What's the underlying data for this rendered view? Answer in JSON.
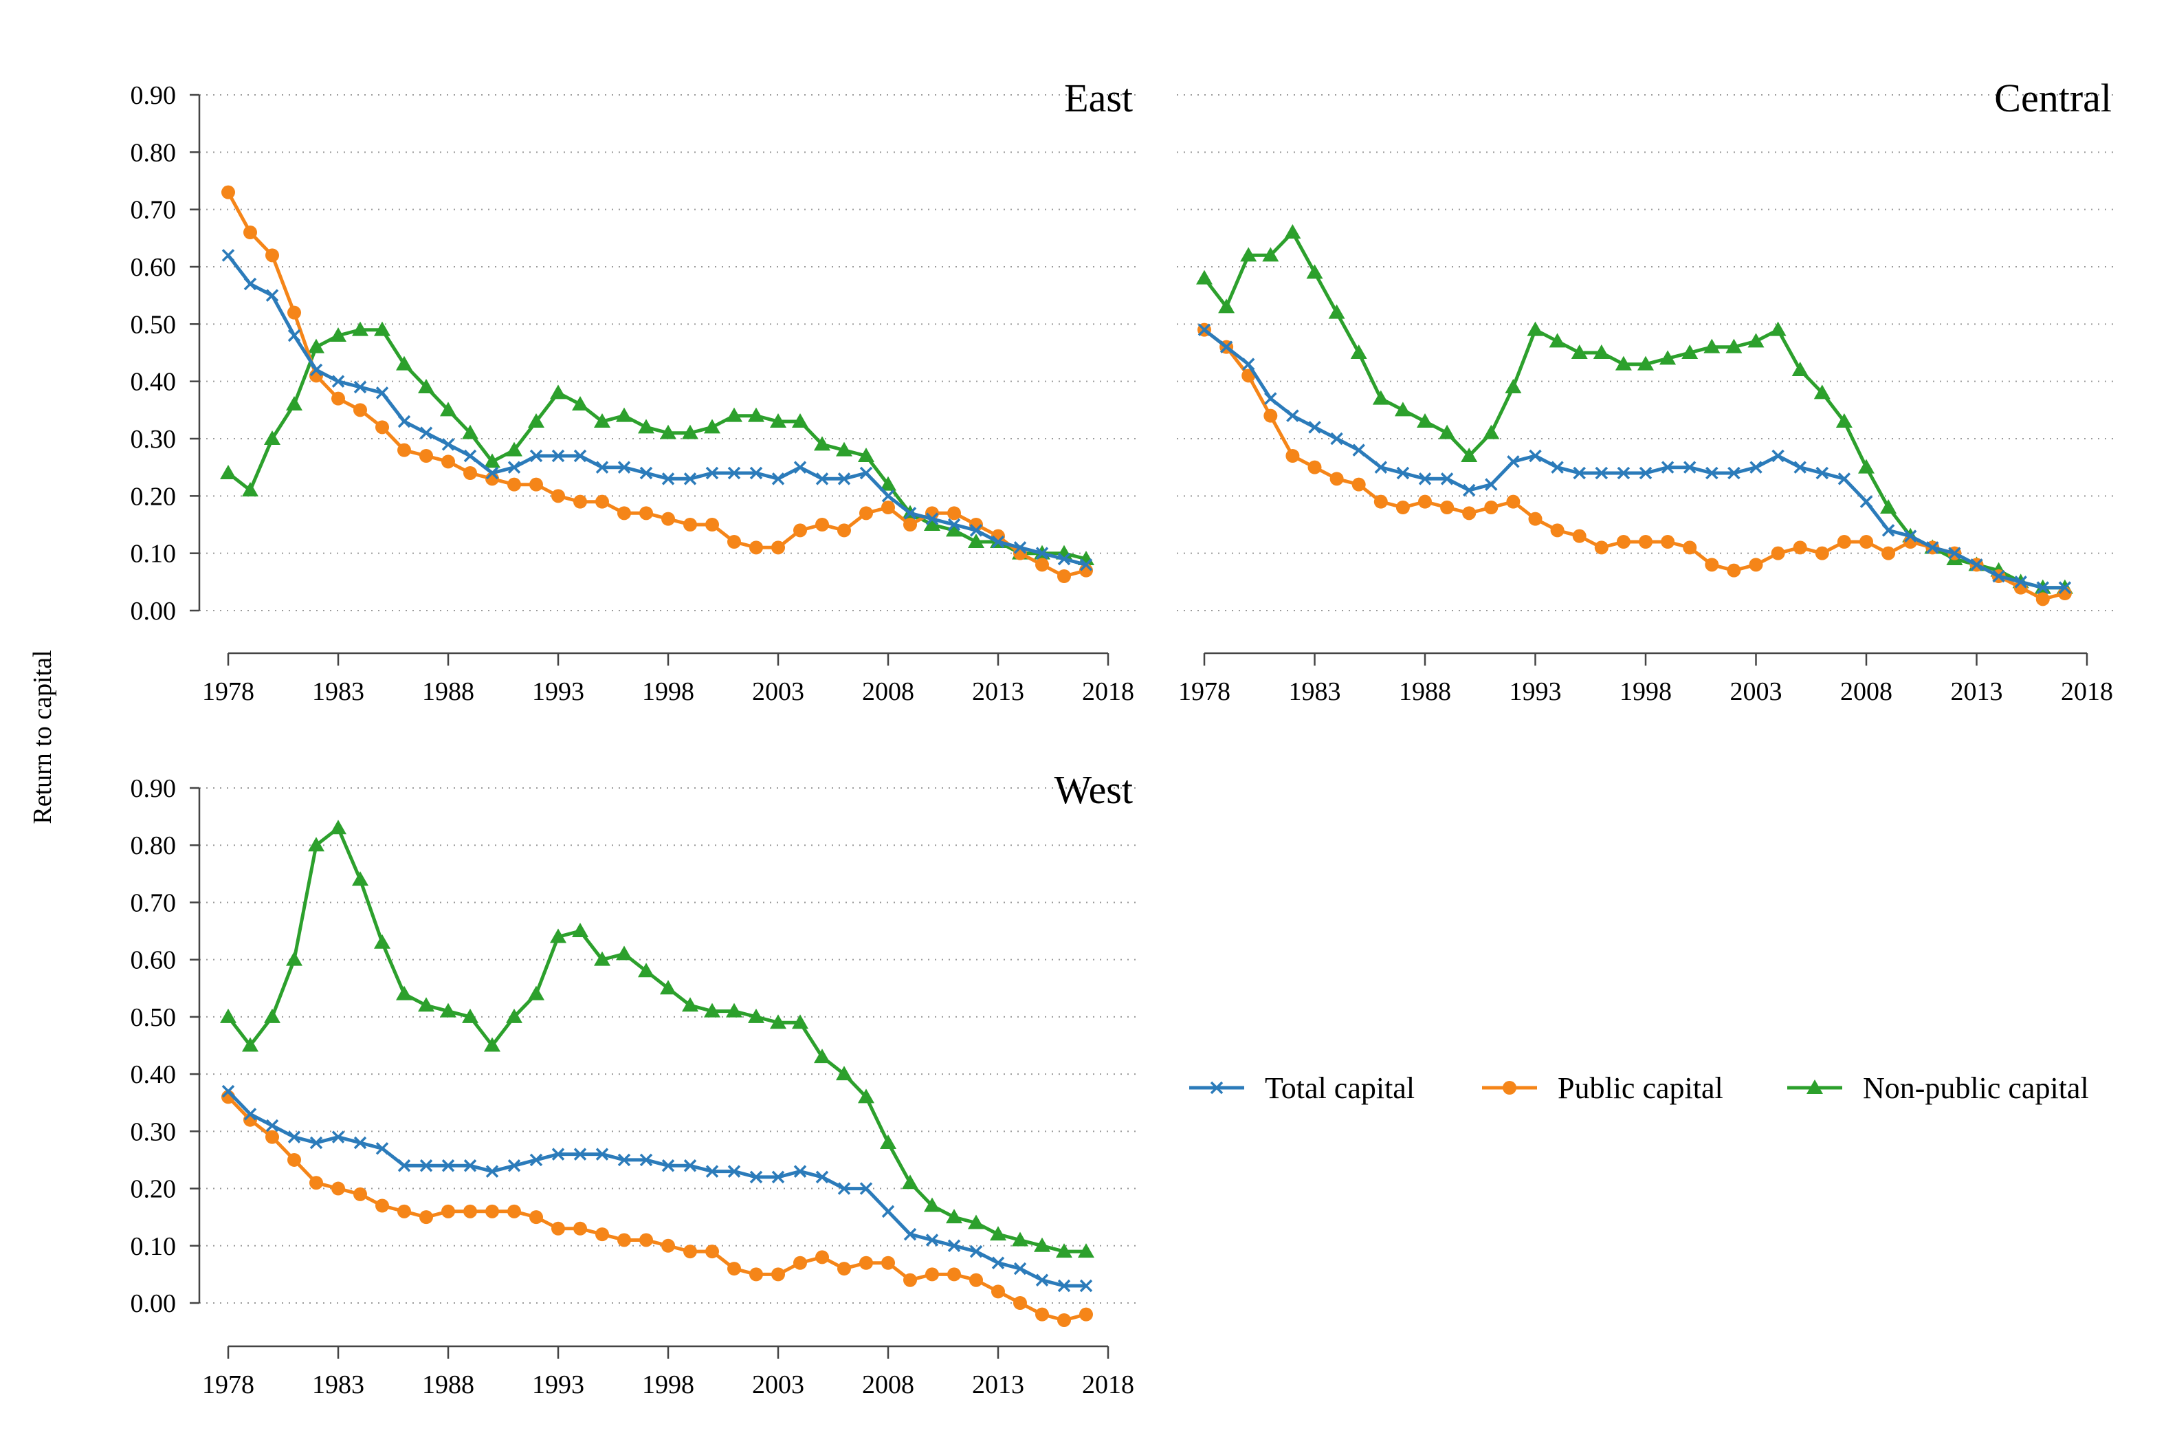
{
  "figure": {
    "ylabel": "Return to capital"
  },
  "legend": [
    {
      "name": "Total capital",
      "color": "#2b7bba",
      "marker": "x-icon"
    },
    {
      "name": "Public capital",
      "color": "#f58518",
      "marker": "circle-icon"
    },
    {
      "name": "Non-public capital",
      "color": "#2ca02c",
      "marker": "triangle-icon"
    }
  ],
  "chart_data": [
    {
      "type": "line",
      "title": "East",
      "xlabel": "",
      "ylabel": "Return to capital",
      "x": [
        1978,
        1979,
        1980,
        1981,
        1982,
        1983,
        1984,
        1985,
        1986,
        1987,
        1988,
        1989,
        1990,
        1991,
        1992,
        1993,
        1994,
        1995,
        1996,
        1997,
        1998,
        1999,
        2000,
        2001,
        2002,
        2003,
        2004,
        2005,
        2006,
        2007,
        2008,
        2009,
        2010,
        2011,
        2012,
        2013,
        2014,
        2015,
        2016,
        2017
      ],
      "xticks": [
        "1978",
        "1983",
        "1988",
        "1993",
        "1998",
        "2003",
        "2008",
        "2013",
        "2018"
      ],
      "yticks": [
        "0.00",
        "0.10",
        "0.20",
        "0.30",
        "0.40",
        "0.50",
        "0.60",
        "0.70",
        "0.80",
        "0.90"
      ],
      "xlim": [
        1978,
        2018
      ],
      "ylim": [
        0,
        0.9
      ],
      "grid": "horizontal dotted",
      "series": [
        {
          "name": "Total capital",
          "values": [
            0.62,
            0.57,
            0.55,
            0.48,
            0.42,
            0.4,
            0.39,
            0.38,
            0.33,
            0.31,
            0.29,
            0.27,
            0.24,
            0.25,
            0.27,
            0.27,
            0.27,
            0.25,
            0.25,
            0.24,
            0.23,
            0.23,
            0.24,
            0.24,
            0.24,
            0.23,
            0.25,
            0.23,
            0.23,
            0.24,
            0.2,
            0.17,
            0.16,
            0.15,
            0.14,
            0.12,
            0.11,
            0.1,
            0.09,
            0.08
          ]
        },
        {
          "name": "Public capital",
          "values": [
            0.73,
            0.66,
            0.62,
            0.52,
            0.41,
            0.37,
            0.35,
            0.32,
            0.28,
            0.27,
            0.26,
            0.24,
            0.23,
            0.22,
            0.22,
            0.2,
            0.19,
            0.19,
            0.17,
            0.17,
            0.16,
            0.15,
            0.15,
            0.12,
            0.11,
            0.11,
            0.14,
            0.15,
            0.14,
            0.17,
            0.18,
            0.15,
            0.17,
            0.17,
            0.15,
            0.13,
            0.1,
            0.08,
            0.06,
            0.07
          ]
        },
        {
          "name": "Non-public capital",
          "values": [
            0.24,
            0.21,
            0.3,
            0.36,
            0.46,
            0.48,
            0.49,
            0.49,
            0.43,
            0.39,
            0.35,
            0.31,
            0.26,
            0.28,
            0.33,
            0.38,
            0.36,
            0.33,
            0.34,
            0.32,
            0.31,
            0.31,
            0.32,
            0.34,
            0.34,
            0.33,
            0.33,
            0.29,
            0.28,
            0.27,
            0.22,
            0.17,
            0.15,
            0.14,
            0.12,
            0.12,
            0.1,
            0.1,
            0.1,
            0.09
          ]
        }
      ]
    },
    {
      "type": "line",
      "title": "Central",
      "xlabel": "",
      "ylabel": "Return to capital",
      "x": [
        1978,
        1979,
        1980,
        1981,
        1982,
        1983,
        1984,
        1985,
        1986,
        1987,
        1988,
        1989,
        1990,
        1991,
        1992,
        1993,
        1994,
        1995,
        1996,
        1997,
        1998,
        1999,
        2000,
        2001,
        2002,
        2003,
        2004,
        2005,
        2006,
        2007,
        2008,
        2009,
        2010,
        2011,
        2012,
        2013,
        2014,
        2015,
        2016,
        2017
      ],
      "xticks": [
        "1978",
        "1983",
        "1988",
        "1993",
        "1998",
        "2003",
        "2008",
        "2013",
        "2018"
      ],
      "yticks": [],
      "xlim": [
        1978,
        2018
      ],
      "ylim": [
        0,
        0.9
      ],
      "grid": "horizontal dotted",
      "series": [
        {
          "name": "Total capital",
          "values": [
            0.49,
            0.46,
            0.43,
            0.37,
            0.34,
            0.32,
            0.3,
            0.28,
            0.25,
            0.24,
            0.23,
            0.23,
            0.21,
            0.22,
            0.26,
            0.27,
            0.25,
            0.24,
            0.24,
            0.24,
            0.24,
            0.25,
            0.25,
            0.24,
            0.24,
            0.25,
            0.27,
            0.25,
            0.24,
            0.23,
            0.19,
            0.14,
            0.13,
            0.11,
            0.1,
            0.08,
            0.06,
            0.05,
            0.04,
            0.04
          ]
        },
        {
          "name": "Public capital",
          "values": [
            0.49,
            0.46,
            0.41,
            0.34,
            0.27,
            0.25,
            0.23,
            0.22,
            0.19,
            0.18,
            0.19,
            0.18,
            0.17,
            0.18,
            0.19,
            0.16,
            0.14,
            0.13,
            0.11,
            0.12,
            0.12,
            0.12,
            0.11,
            0.08,
            0.07,
            0.08,
            0.1,
            0.11,
            0.1,
            0.12,
            0.12,
            0.1,
            0.12,
            0.11,
            0.1,
            0.08,
            0.06,
            0.04,
            0.02,
            0.03
          ]
        },
        {
          "name": "Non-public capital",
          "values": [
            0.58,
            0.53,
            0.62,
            0.62,
            0.66,
            0.59,
            0.52,
            0.45,
            0.37,
            0.35,
            0.33,
            0.31,
            0.27,
            0.31,
            0.39,
            0.49,
            0.47,
            0.45,
            0.45,
            0.43,
            0.43,
            0.44,
            0.45,
            0.46,
            0.46,
            0.47,
            0.49,
            0.42,
            0.38,
            0.33,
            0.25,
            0.18,
            0.13,
            0.11,
            0.09,
            0.08,
            0.07,
            0.05,
            0.04,
            0.04
          ]
        }
      ]
    },
    {
      "type": "line",
      "title": "West",
      "xlabel": "",
      "ylabel": "Return to capital",
      "x": [
        1978,
        1979,
        1980,
        1981,
        1982,
        1983,
        1984,
        1985,
        1986,
        1987,
        1988,
        1989,
        1990,
        1991,
        1992,
        1993,
        1994,
        1995,
        1996,
        1997,
        1998,
        1999,
        2000,
        2001,
        2002,
        2003,
        2004,
        2005,
        2006,
        2007,
        2008,
        2009,
        2010,
        2011,
        2012,
        2013,
        2014,
        2015,
        2016,
        2017
      ],
      "xticks": [
        "1978",
        "1983",
        "1988",
        "1993",
        "1998",
        "2003",
        "2008",
        "2013",
        "2018"
      ],
      "yticks": [
        "0.00",
        "0.10",
        "0.20",
        "0.30",
        "0.40",
        "0.50",
        "0.60",
        "0.70",
        "0.80",
        "0.90"
      ],
      "xlim": [
        1978,
        2018
      ],
      "ylim": [
        0,
        0.9
      ],
      "grid": "horizontal dotted",
      "series": [
        {
          "name": "Total capital",
          "values": [
            0.37,
            0.33,
            0.31,
            0.29,
            0.28,
            0.29,
            0.28,
            0.27,
            0.24,
            0.24,
            0.24,
            0.24,
            0.23,
            0.24,
            0.25,
            0.26,
            0.26,
            0.26,
            0.25,
            0.25,
            0.24,
            0.24,
            0.23,
            0.23,
            0.22,
            0.22,
            0.23,
            0.22,
            0.2,
            0.2,
            0.16,
            0.12,
            0.11,
            0.1,
            0.09,
            0.07,
            0.06,
            0.04,
            0.03,
            0.03
          ]
        },
        {
          "name": "Public capital",
          "values": [
            0.36,
            0.32,
            0.29,
            0.25,
            0.21,
            0.2,
            0.19,
            0.17,
            0.16,
            0.15,
            0.16,
            0.16,
            0.16,
            0.16,
            0.15,
            0.13,
            0.13,
            0.12,
            0.11,
            0.11,
            0.1,
            0.09,
            0.09,
            0.06,
            0.05,
            0.05,
            0.07,
            0.08,
            0.06,
            0.07,
            0.07,
            0.04,
            0.05,
            0.05,
            0.04,
            0.02,
            0.0,
            -0.02,
            -0.03,
            -0.02
          ]
        },
        {
          "name": "Non-public capital",
          "values": [
            0.5,
            0.45,
            0.5,
            0.6,
            0.8,
            0.83,
            0.74,
            0.63,
            0.54,
            0.52,
            0.51,
            0.5,
            0.45,
            0.5,
            0.54,
            0.64,
            0.65,
            0.6,
            0.61,
            0.58,
            0.55,
            0.52,
            0.51,
            0.51,
            0.5,
            0.49,
            0.49,
            0.43,
            0.4,
            0.36,
            0.28,
            0.21,
            0.17,
            0.15,
            0.14,
            0.12,
            0.11,
            0.1,
            0.09,
            0.09
          ]
        }
      ]
    }
  ]
}
